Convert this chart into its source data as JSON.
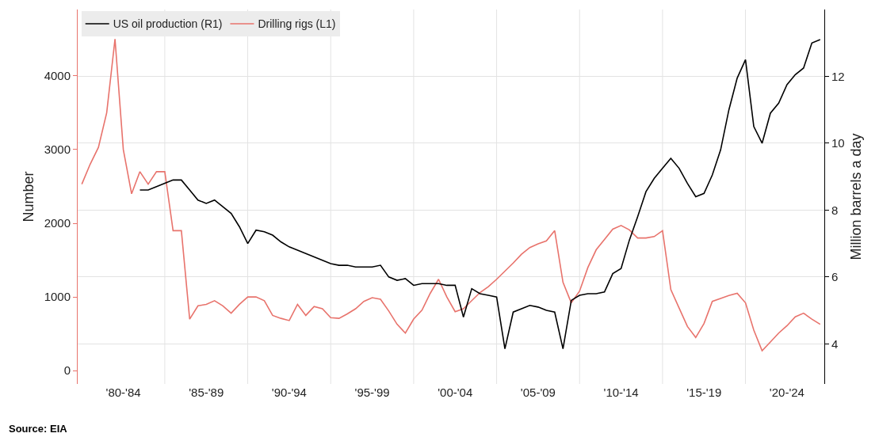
{
  "chart_data": {
    "type": "line",
    "ylabel": "Number",
    "y2label": "Million barrels a day",
    "annotations": [
      "Source: EIA"
    ],
    "categories": [
      null,
      null,
      null,
      null,
      null,
      "'80-'84",
      null,
      null,
      null,
      null,
      null,
      null,
      null,
      null,
      null,
      "'85-'89",
      null,
      null,
      null,
      null,
      null,
      null,
      null,
      null,
      null,
      "'90-'94",
      null,
      null,
      null,
      null,
      null,
      null,
      null,
      null,
      null,
      "'95-'99",
      null,
      null,
      null,
      null,
      null,
      null,
      null,
      null,
      null,
      "'00-'04",
      null,
      null,
      null,
      null,
      null,
      null,
      null,
      null,
      null,
      "'05-'09",
      null,
      null,
      null,
      null,
      null,
      null,
      null,
      null,
      null,
      "'10-'14",
      null,
      null,
      null,
      null,
      null,
      null,
      null,
      null,
      null,
      "'15-'19",
      null,
      null,
      null,
      null,
      null,
      null,
      null,
      null,
      null,
      "'20-'24",
      null,
      null,
      null,
      null
    ],
    "ylim": [
      -180,
      4900
    ],
    "yticks": [
      0,
      1000,
      2000,
      3000,
      4000
    ],
    "y2lim": [
      2.8,
      14.0
    ],
    "y2ticks": [
      4,
      6,
      8,
      10,
      12
    ],
    "grid": true,
    "legend": "top left",
    "line_style": "solid",
    "series": [
      {
        "name": "US oil production (R1)",
        "color": "#000000",
        "axis": "y2",
        "values": [
          null,
          null,
          null,
          null,
          null,
          null,
          null,
          8.6,
          8.6,
          8.7,
          8.8,
          8.9,
          8.9,
          8.6,
          8.3,
          8.2,
          8.3,
          8.1,
          7.9,
          7.5,
          7.0,
          7.4,
          7.35,
          7.25,
          7.05,
          6.9,
          6.8,
          6.7,
          6.6,
          6.5,
          6.4,
          6.35,
          6.35,
          6.3,
          6.3,
          6.3,
          6.35,
          6.0,
          5.9,
          5.95,
          5.75,
          5.8,
          5.8,
          5.8,
          5.75,
          5.75,
          4.8,
          5.65,
          5.5,
          5.45,
          5.4,
          3.85,
          4.95,
          5.05,
          5.15,
          5.1,
          5.0,
          4.95,
          3.85,
          5.3,
          5.45,
          5.5,
          5.5,
          5.55,
          6.1,
          6.25,
          7.1,
          7.8,
          8.55,
          8.95,
          9.25,
          9.55,
          9.25,
          8.8,
          8.4,
          8.5,
          9.05,
          9.8,
          11.0,
          11.95,
          12.5,
          10.5,
          10.0,
          10.9,
          11.2,
          11.75,
          12.05,
          12.25,
          13.0,
          13.1
        ]
      },
      {
        "name": "Drilling rigs (L1)",
        "color": "#e8736c",
        "values": [
          2530,
          2800,
          3030,
          3500,
          4500,
          3000,
          2400,
          2700,
          2530,
          2700,
          2700,
          1900,
          1900,
          700,
          880,
          900,
          950,
          880,
          780,
          900,
          1000,
          1000,
          950,
          750,
          710,
          680,
          900,
          750,
          870,
          840,
          720,
          710,
          770,
          840,
          940,
          990,
          970,
          810,
          630,
          510,
          700,
          820,
          1050,
          1240,
          1000,
          800,
          840,
          950,
          1060,
          1140,
          1240,
          1350,
          1460,
          1580,
          1670,
          1720,
          1760,
          1900,
          1200,
          920,
          1080,
          1400,
          1640,
          1780,
          1920,
          1970,
          1910,
          1800,
          1800,
          1820,
          1900,
          1100,
          850,
          600,
          450,
          640,
          940,
          980,
          1020,
          1050,
          920,
          550,
          270,
          390,
          510,
          610,
          730,
          780,
          700,
          630
        ]
      }
    ]
  }
}
